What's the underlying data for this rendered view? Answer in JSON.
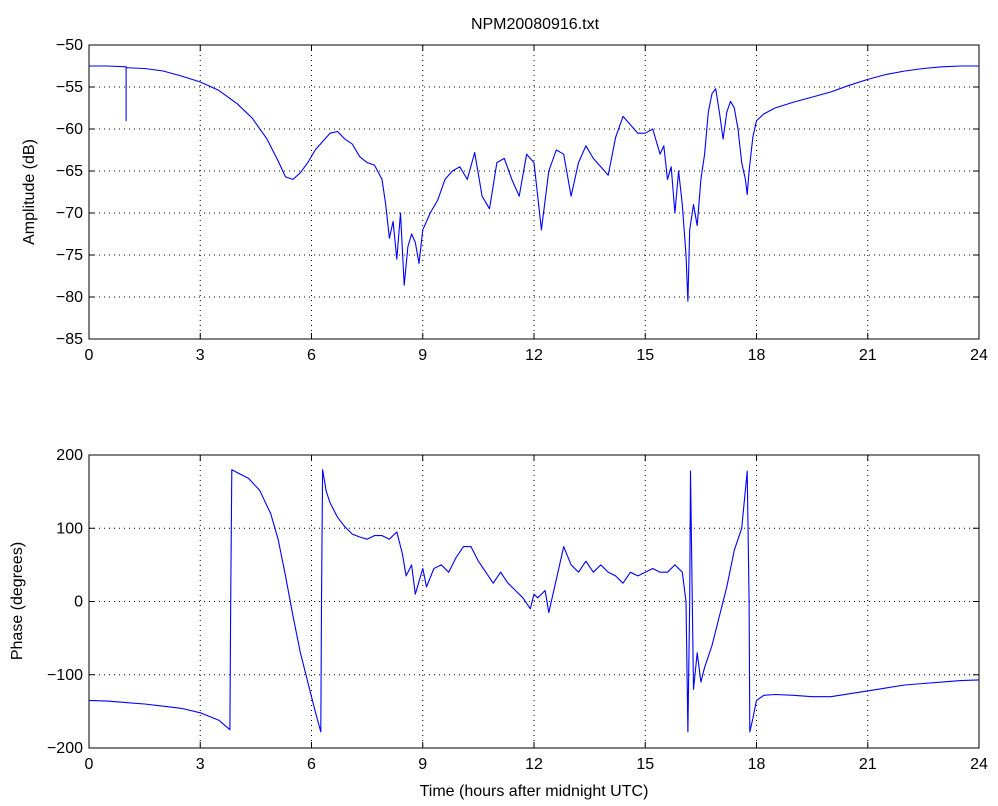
{
  "figure_title": "NPM20080916.txt",
  "colors": {
    "trace": "#0000ff",
    "axes": "#000000",
    "background": "#ffffff"
  },
  "chart_data": [
    {
      "type": "line",
      "title": "NPM20080916.txt",
      "xlabel": "",
      "ylabel": "Amplitude (dB)",
      "xlim": [
        0,
        24
      ],
      "ylim": [
        -85,
        -50
      ],
      "xticks": [
        0,
        3,
        6,
        9,
        12,
        15,
        18,
        21,
        24
      ],
      "yticks": [
        -85,
        -80,
        -75,
        -70,
        -65,
        -60,
        -55,
        -50
      ],
      "xtick_labels": [
        "0",
        "3",
        "6",
        "9",
        "12",
        "15",
        "18",
        "21",
        "24"
      ],
      "ytick_labels": [
        "−85",
        "−80",
        "−75",
        "−70",
        "−65",
        "−60",
        "−55",
        "−50"
      ],
      "grid": true,
      "series": [
        {
          "color": "#0000ff",
          "x": [
            0,
            0.5,
            1.0,
            1.0,
            1.0,
            1.5,
            2.0,
            2.5,
            3.0,
            3.5,
            4.0,
            4.4,
            4.8,
            5.1,
            5.3,
            5.5,
            5.7,
            5.9,
            6.1,
            6.3,
            6.5,
            6.7,
            6.9,
            7.1,
            7.3,
            7.5,
            7.7,
            7.9,
            8.0,
            8.1,
            8.2,
            8.3,
            8.4,
            8.5,
            8.6,
            8.7,
            8.8,
            8.9,
            9.0,
            9.2,
            9.4,
            9.6,
            9.8,
            10.0,
            10.2,
            10.4,
            10.6,
            10.8,
            11.0,
            11.2,
            11.4,
            11.6,
            11.8,
            12.0,
            12.2,
            12.4,
            12.6,
            12.8,
            13.0,
            13.2,
            13.4,
            13.6,
            13.8,
            14.0,
            14.2,
            14.4,
            14.6,
            14.8,
            15.0,
            15.2,
            15.4,
            15.5,
            15.6,
            15.7,
            15.8,
            15.9,
            16.0,
            16.1,
            16.15,
            16.2,
            16.3,
            16.4,
            16.5,
            16.6,
            16.7,
            16.8,
            16.9,
            17.0,
            17.1,
            17.2,
            17.3,
            17.4,
            17.5,
            17.6,
            17.7,
            17.75,
            17.8,
            17.9,
            18.0,
            18.2,
            18.5,
            19.0,
            19.5,
            20.0,
            20.5,
            21.0,
            21.5,
            22.0,
            22.5,
            23.0,
            23.5,
            24.0
          ],
          "y": [
            -52.5,
            -52.5,
            -52.6,
            -59.0,
            -52.7,
            -52.8,
            -53.1,
            -53.7,
            -54.4,
            -55.4,
            -57.0,
            -58.7,
            -61.2,
            -63.8,
            -65.7,
            -66.0,
            -65.2,
            -64.0,
            -62.5,
            -61.5,
            -60.5,
            -60.3,
            -61.2,
            -61.8,
            -63.3,
            -64.0,
            -64.3,
            -66.0,
            -69.0,
            -73.0,
            -71.0,
            -75.5,
            -70.0,
            -78.6,
            -74.0,
            -72.5,
            -73.5,
            -76.0,
            -72.0,
            -70.0,
            -68.5,
            -66.0,
            -65.0,
            -64.5,
            -66.0,
            -62.8,
            -68.0,
            -69.5,
            -64.0,
            -63.5,
            -66.0,
            -68.0,
            -63.0,
            -64.0,
            -72.0,
            -65.0,
            -62.5,
            -63.0,
            -68.0,
            -64.0,
            -62.0,
            -63.5,
            -64.5,
            -65.5,
            -61.0,
            -58.5,
            -59.5,
            -60.5,
            -60.5,
            -60.0,
            -63.0,
            -62.0,
            -66.0,
            -64.5,
            -70.0,
            -65.0,
            -69.0,
            -75.0,
            -80.5,
            -72.0,
            -69.0,
            -71.5,
            -66.0,
            -63.0,
            -58.0,
            -55.8,
            -55.2,
            -58.0,
            -61.2,
            -58.0,
            -56.7,
            -57.5,
            -60.0,
            -64.0,
            -66.0,
            -67.8,
            -65.0,
            -61.0,
            -59.0,
            -58.2,
            -57.5,
            -56.8,
            -56.2,
            -55.6,
            -54.8,
            -54.1,
            -53.5,
            -53.1,
            -52.8,
            -52.6,
            -52.5,
            -52.5
          ]
        }
      ]
    },
    {
      "type": "line",
      "title": "",
      "xlabel": "Time (hours after midnight UTC)",
      "ylabel": "Phase (degrees)",
      "xlim": [
        0,
        24
      ],
      "ylim": [
        -200,
        200
      ],
      "xticks": [
        0,
        3,
        6,
        9,
        12,
        15,
        18,
        21,
        24
      ],
      "yticks": [
        -200,
        -100,
        0,
        100,
        200
      ],
      "xtick_labels": [
        "0",
        "3",
        "6",
        "9",
        "12",
        "15",
        "18",
        "21",
        "24"
      ],
      "ytick_labels": [
        "−200",
        "−100",
        "0",
        "100",
        "200"
      ],
      "grid": true,
      "series": [
        {
          "color": "#0000ff",
          "x": [
            0,
            0.5,
            1.0,
            1.5,
            2.0,
            2.5,
            3.0,
            3.5,
            3.8,
            3.82,
            3.85,
            4.0,
            4.3,
            4.6,
            4.9,
            5.1,
            5.3,
            5.5,
            5.7,
            5.9,
            6.1,
            6.25,
            6.27,
            6.3,
            6.4,
            6.5,
            6.7,
            6.9,
            7.1,
            7.3,
            7.5,
            7.7,
            7.9,
            8.1,
            8.3,
            8.45,
            8.55,
            8.7,
            8.8,
            9.0,
            9.1,
            9.3,
            9.5,
            9.7,
            9.9,
            10.1,
            10.3,
            10.5,
            10.7,
            10.9,
            11.1,
            11.3,
            11.5,
            11.7,
            11.9,
            12.0,
            12.1,
            12.3,
            12.4,
            12.6,
            12.8,
            13.0,
            13.2,
            13.4,
            13.6,
            13.8,
            14.0,
            14.2,
            14.4,
            14.6,
            14.8,
            15.0,
            15.2,
            15.4,
            15.6,
            15.8,
            16.0,
            16.1,
            16.15,
            16.2,
            16.22,
            16.3,
            16.4,
            16.5,
            16.6,
            16.8,
            17.0,
            17.2,
            17.4,
            17.6,
            17.75,
            17.8,
            17.82,
            17.9,
            18.0,
            18.2,
            18.5,
            19.0,
            19.5,
            20.0,
            20.5,
            21.0,
            21.5,
            22.0,
            22.5,
            23.0,
            23.5,
            24.0
          ],
          "y": [
            -135,
            -136,
            -138,
            -140,
            -143,
            -146,
            -152,
            -162,
            -175,
            0,
            180,
            176,
            168,
            152,
            120,
            85,
            35,
            -20,
            -70,
            -110,
            -150,
            -178,
            0,
            180,
            150,
            135,
            115,
            102,
            92,
            88,
            85,
            90,
            90,
            85,
            95,
            65,
            35,
            50,
            10,
            45,
            20,
            45,
            50,
            40,
            60,
            75,
            75,
            55,
            40,
            25,
            40,
            25,
            15,
            5,
            -10,
            10,
            5,
            15,
            -15,
            30,
            75,
            50,
            40,
            55,
            40,
            50,
            40,
            35,
            25,
            40,
            35,
            40,
            45,
            40,
            40,
            50,
            40,
            0,
            -178,
            0,
            178,
            -120,
            -70,
            -110,
            -90,
            -60,
            -20,
            20,
            70,
            100,
            178,
            0,
            -178,
            -160,
            -135,
            -128,
            -127,
            -128,
            -130,
            -130,
            -126,
            -122,
            -118,
            -114,
            -112,
            -110,
            -108,
            -107
          ]
        }
      ]
    }
  ]
}
